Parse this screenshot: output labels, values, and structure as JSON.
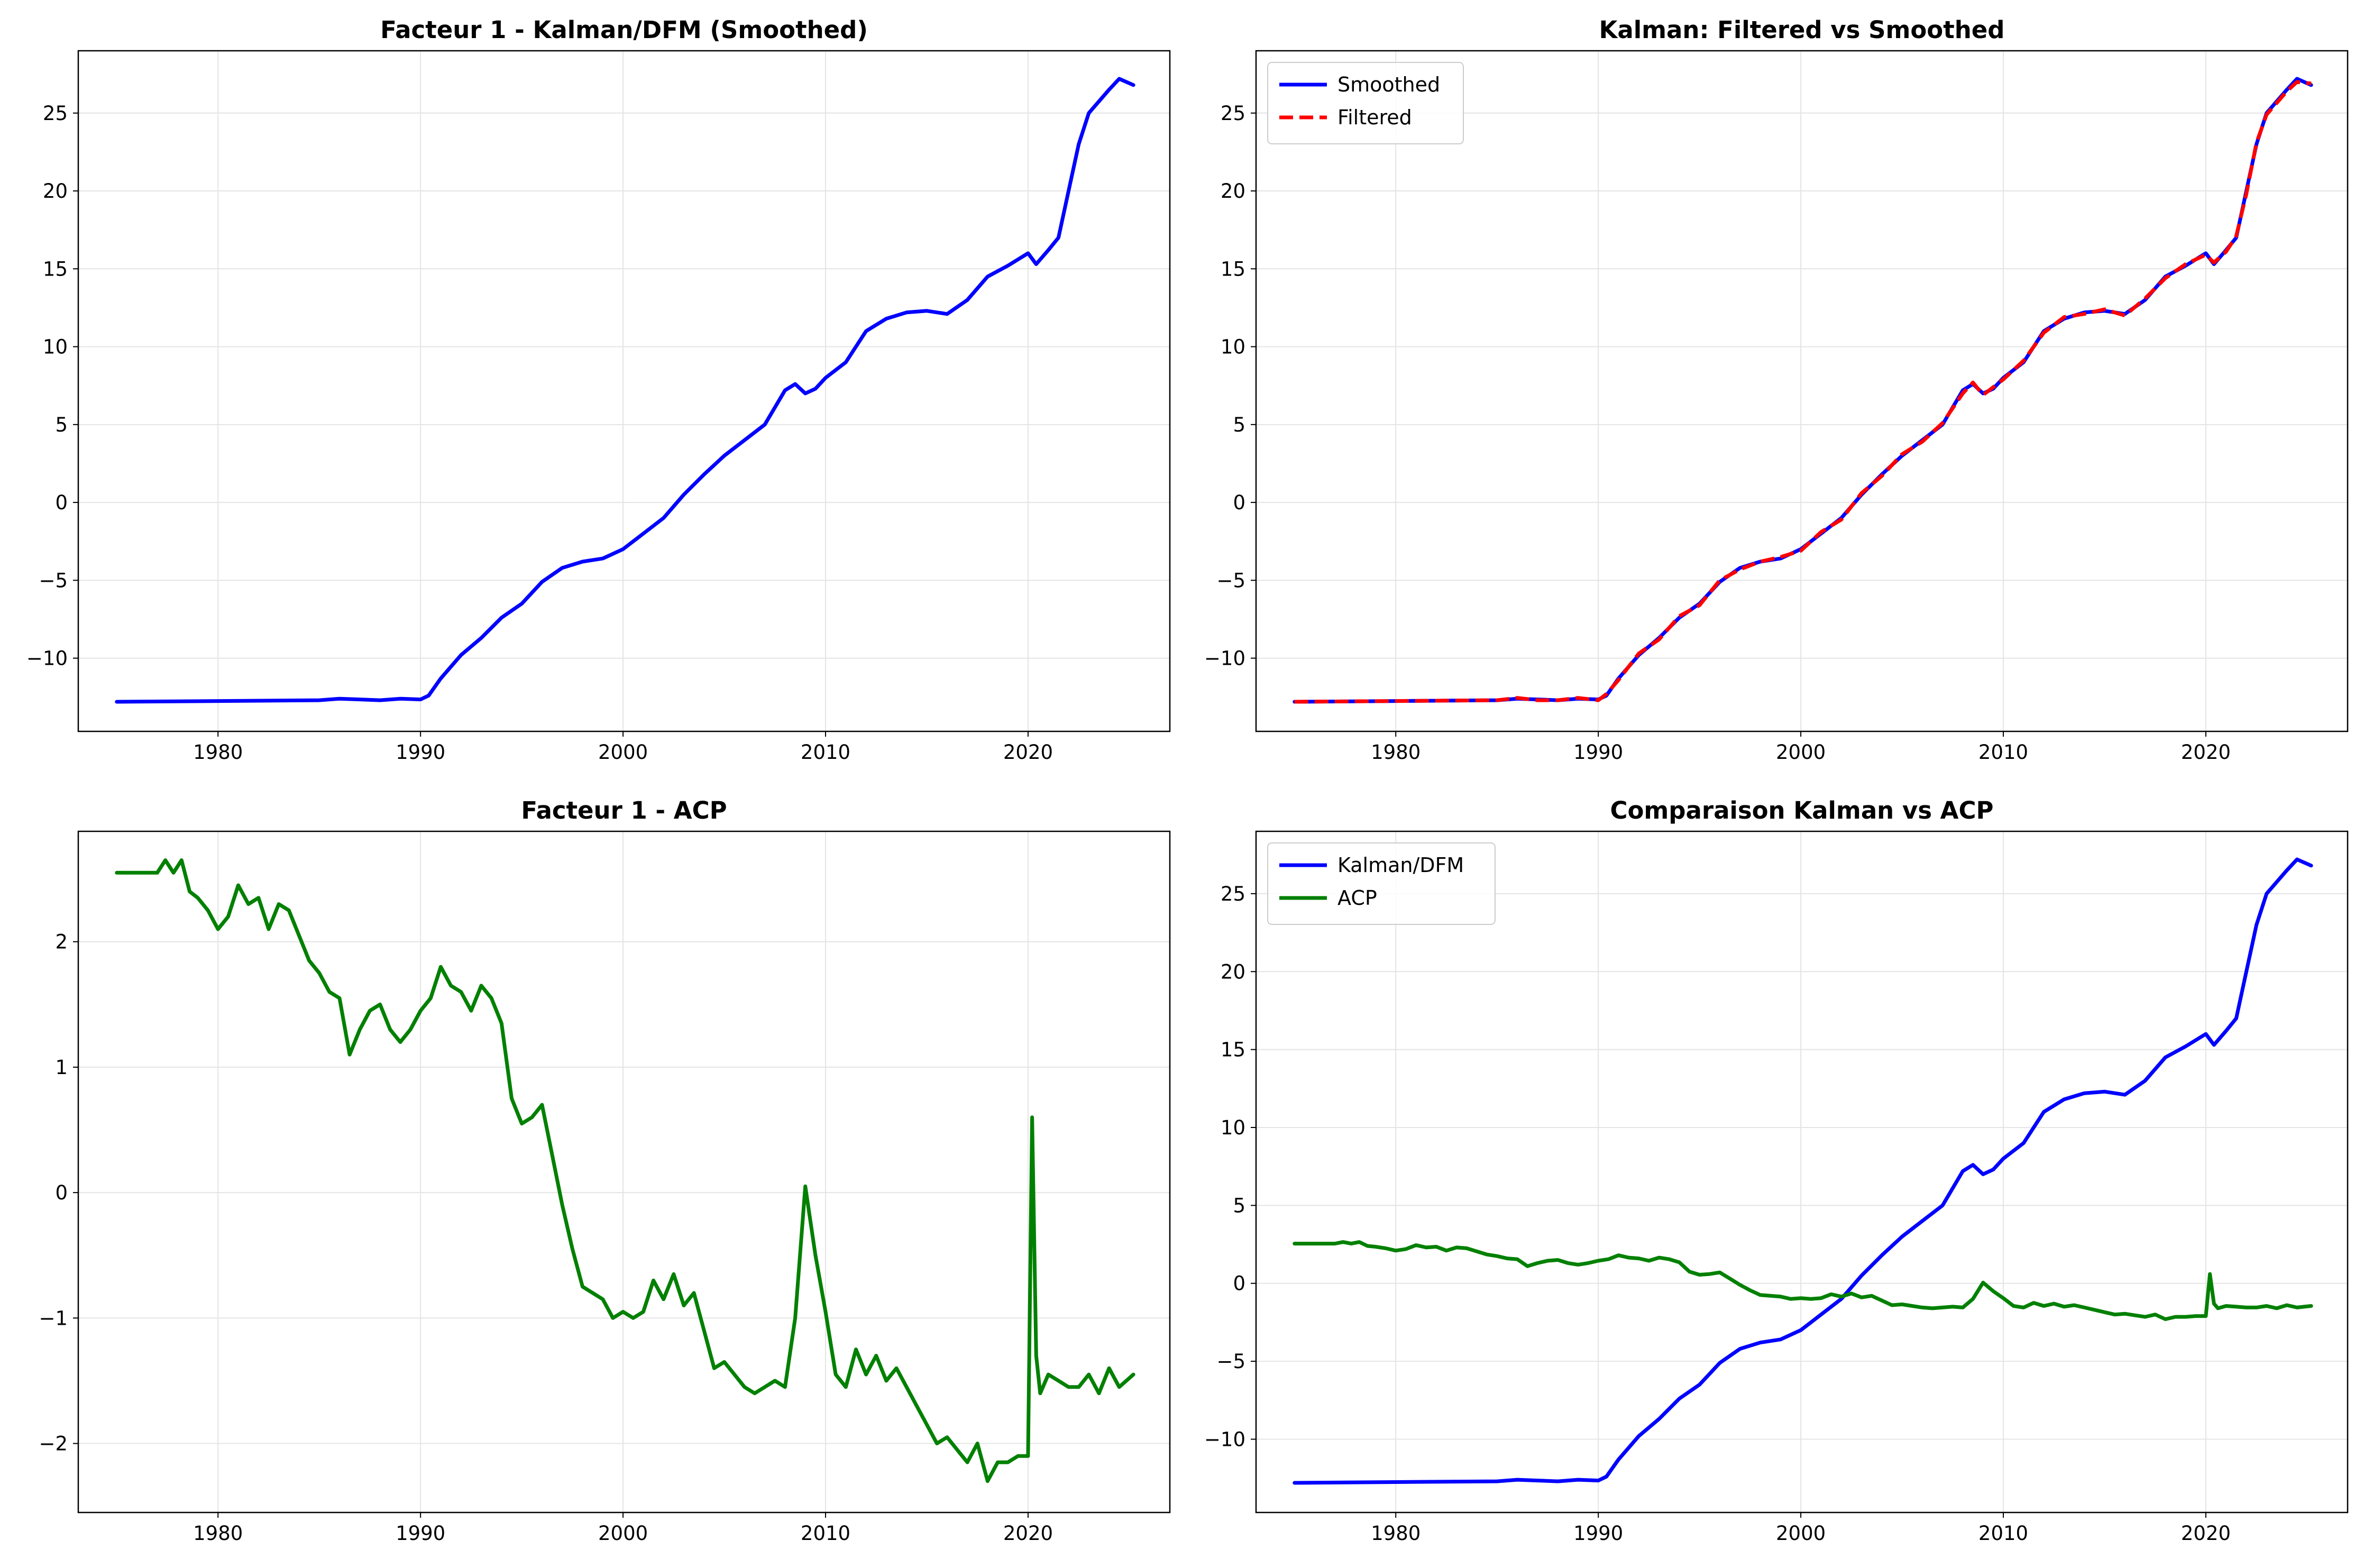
{
  "chart_data": [
    {
      "type": "line",
      "title": "Facteur 1 - Kalman/DFM (Smoothed)",
      "xlabel": "",
      "ylabel": "",
      "xlim": [
        1973.1,
        2027.0
      ],
      "ylim": [
        -14.7,
        29.0
      ],
      "xticks": [
        "1980",
        "1990",
        "2000",
        "2010",
        "2020"
      ],
      "yticks": [
        "−10",
        "−5",
        "0",
        "5",
        "10",
        "15",
        "20",
        "25"
      ],
      "grid": true,
      "legend": null,
      "series": [
        {
          "color": "#0000ff",
          "style": "solid",
          "x": [
            1975.0,
            1980.0,
            1985.0,
            1986.0,
            1987.0,
            1988.0,
            1989.0,
            1990.0,
            1990.4,
            1991.0,
            1992.0,
            1993.0,
            1994.0,
            1995.0,
            1996.0,
            1997.0,
            1998.0,
            1999.0,
            2000.0,
            2001.0,
            2002.0,
            2003.0,
            2004.0,
            2005.0,
            2006.0,
            2007.0,
            2008.0,
            2008.5,
            2009.0,
            2009.5,
            2010.0,
            2011.0,
            2012.0,
            2013.0,
            2014.0,
            2015.0,
            2016.0,
            2017.0,
            2018.0,
            2019.0,
            2020.0,
            2020.4,
            2021.0,
            2021.5,
            2022.0,
            2022.5,
            2023.0,
            2024.0,
            2024.5,
            2025.2
          ],
          "values": [
            -12.8,
            -12.75,
            -12.7,
            -12.6,
            -12.65,
            -12.7,
            -12.6,
            -12.65,
            -12.4,
            -11.3,
            -9.8,
            -8.7,
            -7.4,
            -6.5,
            -5.1,
            -4.2,
            -3.8,
            -3.6,
            -3.0,
            -2.0,
            -1.0,
            0.5,
            1.8,
            3.0,
            4.0,
            5.0,
            7.2,
            7.6,
            7.0,
            7.3,
            8.0,
            9.0,
            11.0,
            11.8,
            12.2,
            12.3,
            12.1,
            13.0,
            14.5,
            15.2,
            16.0,
            15.3,
            16.2,
            17.0,
            20.0,
            23.0,
            25.0,
            26.5,
            27.2,
            26.8
          ]
        }
      ]
    },
    {
      "type": "line",
      "title": "Kalman: Filtered vs Smoothed",
      "xlabel": "",
      "ylabel": "",
      "xlim": [
        1973.1,
        2027.0
      ],
      "ylim": [
        -14.7,
        29.0
      ],
      "xticks": [
        "1980",
        "1990",
        "2000",
        "2010",
        "2020"
      ],
      "yticks": [
        "−10",
        "−5",
        "0",
        "5",
        "10",
        "15",
        "20",
        "25"
      ],
      "grid": true,
      "legend": "top-left",
      "series": [
        {
          "name": "Smoothed",
          "color": "#0000ff",
          "style": "solid",
          "x": [
            1975.0,
            1980.0,
            1985.0,
            1986.0,
            1987.0,
            1988.0,
            1989.0,
            1990.0,
            1990.4,
            1991.0,
            1992.0,
            1993.0,
            1994.0,
            1995.0,
            1996.0,
            1997.0,
            1998.0,
            1999.0,
            2000.0,
            2001.0,
            2002.0,
            2003.0,
            2004.0,
            2005.0,
            2006.0,
            2007.0,
            2008.0,
            2008.5,
            2009.0,
            2009.5,
            2010.0,
            2011.0,
            2012.0,
            2013.0,
            2014.0,
            2015.0,
            2016.0,
            2017.0,
            2018.0,
            2019.0,
            2020.0,
            2020.4,
            2021.0,
            2021.5,
            2022.0,
            2022.5,
            2023.0,
            2024.0,
            2024.5,
            2025.2
          ],
          "values": [
            -12.8,
            -12.75,
            -12.7,
            -12.6,
            -12.65,
            -12.7,
            -12.6,
            -12.65,
            -12.4,
            -11.3,
            -9.8,
            -8.7,
            -7.4,
            -6.5,
            -5.1,
            -4.2,
            -3.8,
            -3.6,
            -3.0,
            -2.0,
            -1.0,
            0.5,
            1.8,
            3.0,
            4.0,
            5.0,
            7.2,
            7.6,
            7.0,
            7.3,
            8.0,
            9.0,
            11.0,
            11.8,
            12.2,
            12.3,
            12.1,
            13.0,
            14.5,
            15.2,
            16.0,
            15.3,
            16.2,
            17.0,
            20.0,
            23.0,
            25.0,
            26.5,
            27.2,
            26.8
          ]
        },
        {
          "name": "Filtered",
          "color": "#ff0000",
          "style": "dashed",
          "x": [
            1975.0,
            1980.0,
            1985.0,
            1986.0,
            1987.0,
            1988.0,
            1989.0,
            1990.0,
            1990.4,
            1991.0,
            1992.0,
            1993.0,
            1994.0,
            1995.0,
            1996.0,
            1997.0,
            1998.0,
            1999.0,
            2000.0,
            2001.0,
            2002.0,
            2003.0,
            2004.0,
            2005.0,
            2006.0,
            2007.0,
            2008.0,
            2008.5,
            2009.0,
            2009.5,
            2010.0,
            2011.0,
            2012.0,
            2013.0,
            2014.0,
            2015.0,
            2016.0,
            2017.0,
            2018.0,
            2019.0,
            2020.0,
            2020.4,
            2021.0,
            2021.5,
            2022.0,
            2022.5,
            2023.0,
            2024.0,
            2024.5,
            2025.2
          ],
          "values": [
            -12.8,
            -12.75,
            -12.7,
            -12.55,
            -12.7,
            -12.7,
            -12.55,
            -12.7,
            -12.3,
            -11.4,
            -9.7,
            -8.8,
            -7.3,
            -6.6,
            -5.0,
            -4.3,
            -3.8,
            -3.5,
            -3.1,
            -1.9,
            -1.1,
            0.6,
            1.7,
            3.1,
            3.9,
            5.1,
            7.0,
            7.7,
            6.9,
            7.4,
            7.9,
            9.1,
            10.9,
            11.9,
            12.1,
            12.4,
            12.0,
            13.1,
            14.4,
            15.3,
            15.9,
            15.4,
            16.1,
            17.1,
            19.8,
            23.1,
            24.9,
            26.4,
            27.0,
            26.9
          ]
        }
      ]
    },
    {
      "type": "line",
      "title": "Facteur 1 - ACP",
      "xlabel": "",
      "ylabel": "",
      "xlim": [
        1973.1,
        2027.0
      ],
      "ylim": [
        -2.55,
        2.88
      ],
      "xticks": [
        "1980",
        "1990",
        "2000",
        "2010",
        "2020"
      ],
      "yticks": [
        "−2",
        "−1",
        "0",
        "1",
        "2"
      ],
      "grid": true,
      "legend": null,
      "series": [
        {
          "color": "#008000",
          "style": "solid",
          "x": [
            1975.0,
            1977.0,
            1977.4,
            1977.8,
            1978.2,
            1978.6,
            1979.0,
            1979.5,
            1980.0,
            1980.5,
            1981.0,
            1981.5,
            1982.0,
            1982.5,
            1983.0,
            1983.5,
            1984.0,
            1984.5,
            1985.0,
            1985.5,
            1986.0,
            1986.5,
            1987.0,
            1987.5,
            1988.0,
            1988.5,
            1989.0,
            1989.5,
            1990.0,
            1990.5,
            1991.0,
            1991.5,
            1992.0,
            1992.5,
            1993.0,
            1993.5,
            1994.0,
            1994.5,
            1995.0,
            1995.5,
            1996.0,
            1996.5,
            1997.0,
            1997.5,
            1998.0,
            1998.5,
            1999.0,
            1999.5,
            2000.0,
            2000.5,
            2001.0,
            2001.5,
            2002.0,
            2002.5,
            2003.0,
            2003.5,
            2004.0,
            2004.5,
            2005.0,
            2005.5,
            2006.0,
            2006.5,
            2007.0,
            2007.5,
            2008.0,
            2008.5,
            2009.0,
            2009.5,
            2010.0,
            2010.5,
            2011.0,
            2011.5,
            2012.0,
            2012.5,
            2013.0,
            2013.5,
            2014.0,
            2014.5,
            2015.0,
            2015.5,
            2016.0,
            2016.5,
            2017.0,
            2017.5,
            2018.0,
            2018.5,
            2019.0,
            2019.5,
            2020.0,
            2020.2,
            2020.4,
            2020.6,
            2021.0,
            2021.5,
            2022.0,
            2022.5,
            2023.0,
            2023.5,
            2024.0,
            2024.5,
            2025.2
          ],
          "values": [
            2.55,
            2.55,
            2.65,
            2.55,
            2.65,
            2.4,
            2.35,
            2.25,
            2.1,
            2.2,
            2.45,
            2.3,
            2.35,
            2.1,
            2.3,
            2.25,
            2.05,
            1.85,
            1.75,
            1.6,
            1.55,
            1.1,
            1.3,
            1.45,
            1.5,
            1.3,
            1.2,
            1.3,
            1.45,
            1.55,
            1.8,
            1.65,
            1.6,
            1.45,
            1.65,
            1.55,
            1.35,
            0.75,
            0.55,
            0.6,
            0.7,
            0.3,
            -0.1,
            -0.45,
            -0.75,
            -0.8,
            -0.85,
            -1.0,
            -0.95,
            -1.0,
            -0.95,
            -0.7,
            -0.85,
            -0.65,
            -0.9,
            -0.8,
            -1.1,
            -1.4,
            -1.35,
            -1.45,
            -1.55,
            -1.6,
            -1.55,
            -1.5,
            -1.55,
            -1.0,
            0.05,
            -0.5,
            -0.95,
            -1.45,
            -1.55,
            -1.25,
            -1.45,
            -1.3,
            -1.5,
            -1.4,
            -1.55,
            -1.7,
            -1.85,
            -2.0,
            -1.95,
            -2.05,
            -2.15,
            -2.0,
            -2.3,
            -2.15,
            -2.15,
            -2.1,
            -2.1,
            0.6,
            -1.3,
            -1.6,
            -1.45,
            -1.5,
            -1.55,
            -1.55,
            -1.45,
            -1.6,
            -1.4,
            -1.55,
            -1.45
          ]
        }
      ]
    },
    {
      "type": "line",
      "title": "Comparaison Kalman vs ACP",
      "xlabel": "",
      "ylabel": "",
      "xlim": [
        1973.1,
        2027.0
      ],
      "ylim": [
        -14.7,
        29.0
      ],
      "xticks": [
        "1980",
        "1990",
        "2000",
        "2010",
        "2020"
      ],
      "yticks": [
        "−10",
        "−5",
        "0",
        "5",
        "10",
        "15",
        "20",
        "25"
      ],
      "grid": true,
      "legend": "top-left",
      "series": [
        {
          "name": "Kalman/DFM",
          "color": "#0000ff",
          "style": "solid",
          "x": [
            1975.0,
            1980.0,
            1985.0,
            1986.0,
            1987.0,
            1988.0,
            1989.0,
            1990.0,
            1990.4,
            1991.0,
            1992.0,
            1993.0,
            1994.0,
            1995.0,
            1996.0,
            1997.0,
            1998.0,
            1999.0,
            2000.0,
            2001.0,
            2002.0,
            2003.0,
            2004.0,
            2005.0,
            2006.0,
            2007.0,
            2008.0,
            2008.5,
            2009.0,
            2009.5,
            2010.0,
            2011.0,
            2012.0,
            2013.0,
            2014.0,
            2015.0,
            2016.0,
            2017.0,
            2018.0,
            2019.0,
            2020.0,
            2020.4,
            2021.0,
            2021.5,
            2022.0,
            2022.5,
            2023.0,
            2024.0,
            2024.5,
            2025.2
          ],
          "values": [
            -12.8,
            -12.75,
            -12.7,
            -12.6,
            -12.65,
            -12.7,
            -12.6,
            -12.65,
            -12.4,
            -11.3,
            -9.8,
            -8.7,
            -7.4,
            -6.5,
            -5.1,
            -4.2,
            -3.8,
            -3.6,
            -3.0,
            -2.0,
            -1.0,
            0.5,
            1.8,
            3.0,
            4.0,
            5.0,
            7.2,
            7.6,
            7.0,
            7.3,
            8.0,
            9.0,
            11.0,
            11.8,
            12.2,
            12.3,
            12.1,
            13.0,
            14.5,
            15.2,
            16.0,
            15.3,
            16.2,
            17.0,
            20.0,
            23.0,
            25.0,
            26.5,
            27.2,
            26.8
          ]
        },
        {
          "name": "ACP",
          "color": "#008000",
          "style": "solid",
          "x": [
            1975.0,
            1977.0,
            1977.4,
            1977.8,
            1978.2,
            1978.6,
            1979.0,
            1979.5,
            1980.0,
            1980.5,
            1981.0,
            1981.5,
            1982.0,
            1982.5,
            1983.0,
            1983.5,
            1984.0,
            1984.5,
            1985.0,
            1985.5,
            1986.0,
            1986.5,
            1987.0,
            1987.5,
            1988.0,
            1988.5,
            1989.0,
            1989.5,
            1990.0,
            1990.5,
            1991.0,
            1991.5,
            1992.0,
            1992.5,
            1993.0,
            1993.5,
            1994.0,
            1994.5,
            1995.0,
            1995.5,
            1996.0,
            1996.5,
            1997.0,
            1997.5,
            1998.0,
            1998.5,
            1999.0,
            1999.5,
            2000.0,
            2000.5,
            2001.0,
            2001.5,
            2002.0,
            2002.5,
            2003.0,
            2003.5,
            2004.0,
            2004.5,
            2005.0,
            2005.5,
            2006.0,
            2006.5,
            2007.0,
            2007.5,
            2008.0,
            2008.5,
            2009.0,
            2009.5,
            2010.0,
            2010.5,
            2011.0,
            2011.5,
            2012.0,
            2012.5,
            2013.0,
            2013.5,
            2014.0,
            2014.5,
            2015.0,
            2015.5,
            2016.0,
            2016.5,
            2017.0,
            2017.5,
            2018.0,
            2018.5,
            2019.0,
            2019.5,
            2020.0,
            2020.2,
            2020.4,
            2020.6,
            2021.0,
            2021.5,
            2022.0,
            2022.5,
            2023.0,
            2023.5,
            2024.0,
            2024.5,
            2025.2
          ],
          "values": [
            2.55,
            2.55,
            2.65,
            2.55,
            2.65,
            2.4,
            2.35,
            2.25,
            2.1,
            2.2,
            2.45,
            2.3,
            2.35,
            2.1,
            2.3,
            2.25,
            2.05,
            1.85,
            1.75,
            1.6,
            1.55,
            1.1,
            1.3,
            1.45,
            1.5,
            1.3,
            1.2,
            1.3,
            1.45,
            1.55,
            1.8,
            1.65,
            1.6,
            1.45,
            1.65,
            1.55,
            1.35,
            0.75,
            0.55,
            0.6,
            0.7,
            0.3,
            -0.1,
            -0.45,
            -0.75,
            -0.8,
            -0.85,
            -1.0,
            -0.95,
            -1.0,
            -0.95,
            -0.7,
            -0.85,
            -0.65,
            -0.9,
            -0.8,
            -1.1,
            -1.4,
            -1.35,
            -1.45,
            -1.55,
            -1.6,
            -1.55,
            -1.5,
            -1.55,
            -1.0,
            0.05,
            -0.5,
            -0.95,
            -1.45,
            -1.55,
            -1.25,
            -1.45,
            -1.3,
            -1.5,
            -1.4,
            -1.55,
            -1.7,
            -1.85,
            -2.0,
            -1.95,
            -2.05,
            -2.15,
            -2.0,
            -2.3,
            -2.15,
            -2.15,
            -2.1,
            -2.1,
            0.6,
            -1.3,
            -1.6,
            -1.45,
            -1.5,
            -1.55,
            -1.55,
            -1.45,
            -1.6,
            -1.4,
            -1.55,
            -1.45
          ]
        }
      ]
    }
  ]
}
